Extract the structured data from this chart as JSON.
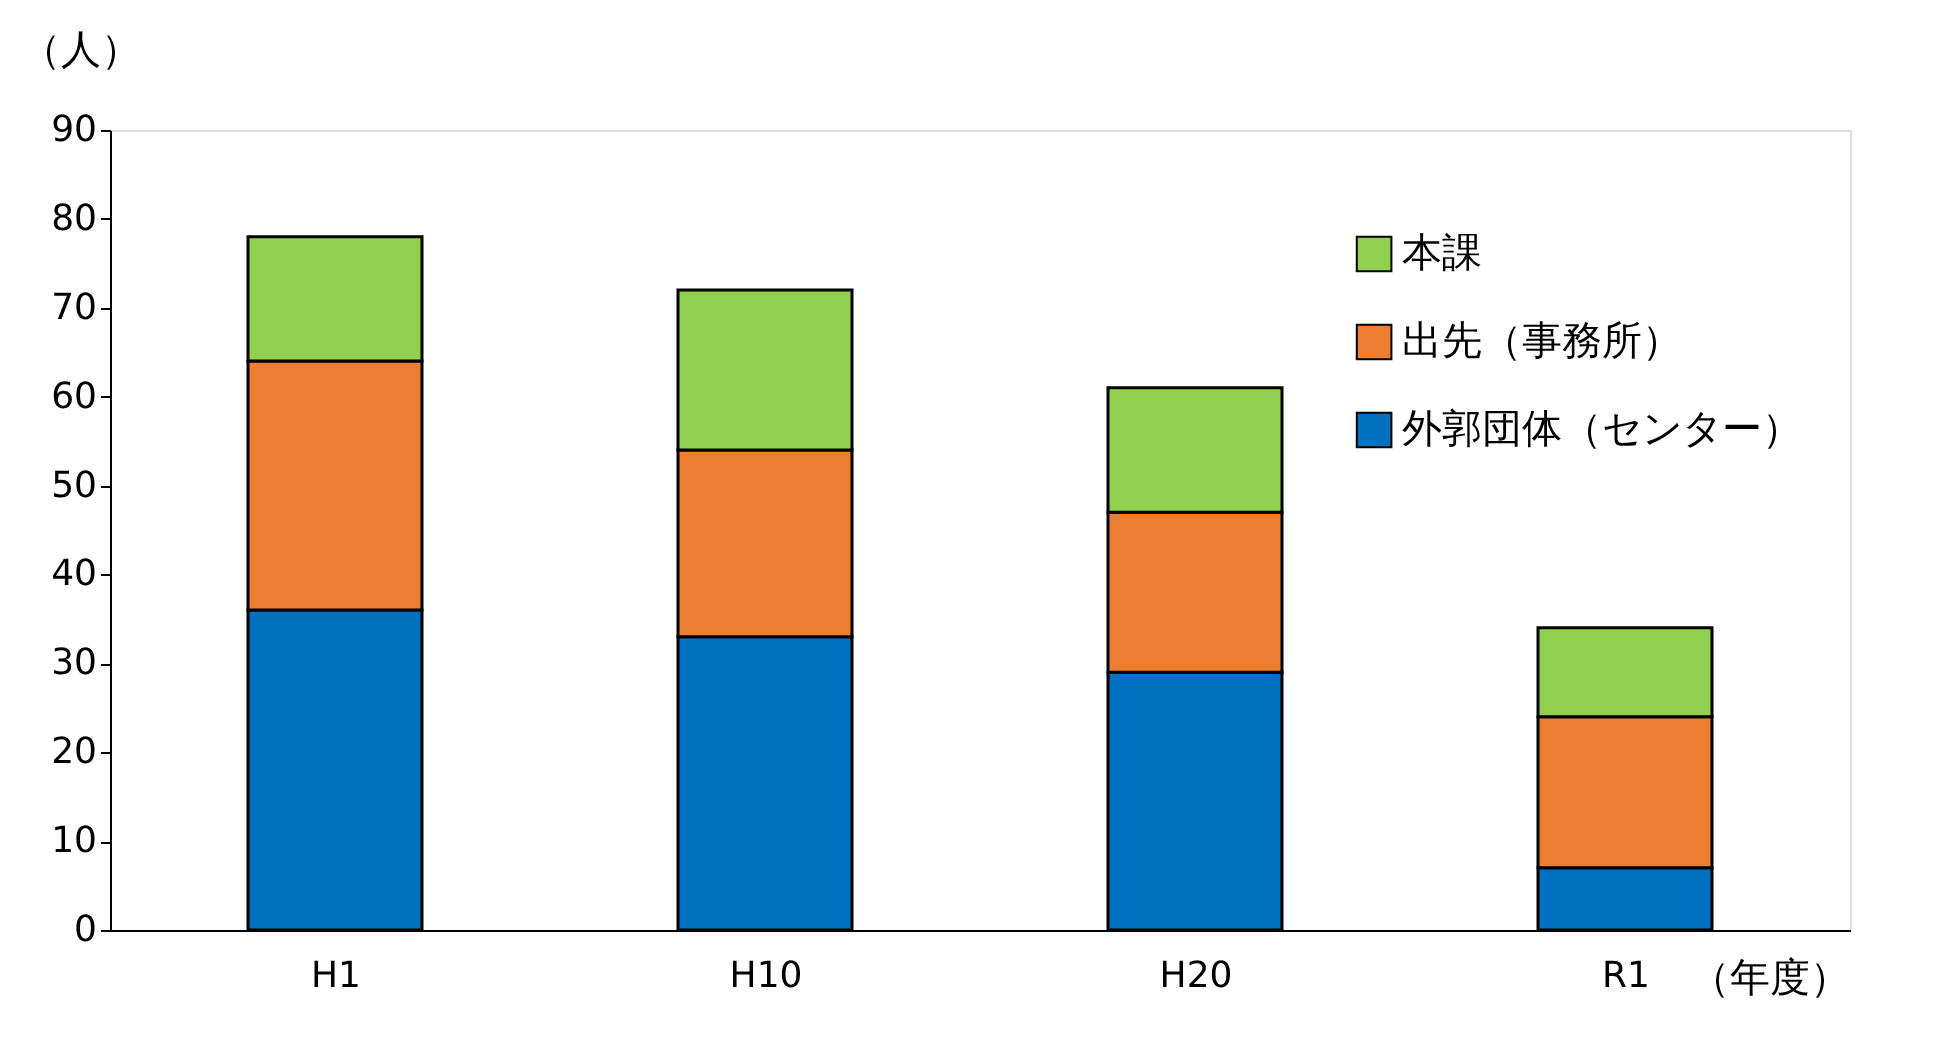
{
  "chart_data": {
    "type": "bar",
    "stacked": true,
    "ylabel": "（人）",
    "xlabel": "（年度）",
    "categories": [
      "H1",
      "H10",
      "H20",
      "R1"
    ],
    "series": [
      {
        "name": "外郭団体（センター）",
        "color": "#0070c0",
        "values": [
          36,
          33,
          29,
          7
        ]
      },
      {
        "name": "出先（事務所）",
        "color": "#ed7d31",
        "values": [
          28,
          21,
          18,
          17
        ]
      },
      {
        "name": "本課",
        "color": "#92d050",
        "values": [
          14,
          18,
          14,
          10
        ]
      }
    ],
    "ylim": [
      0,
      90
    ],
    "yticks": [
      0,
      10,
      20,
      30,
      40,
      50,
      60,
      70,
      80,
      90
    ],
    "grid": false,
    "legend": "top right"
  }
}
